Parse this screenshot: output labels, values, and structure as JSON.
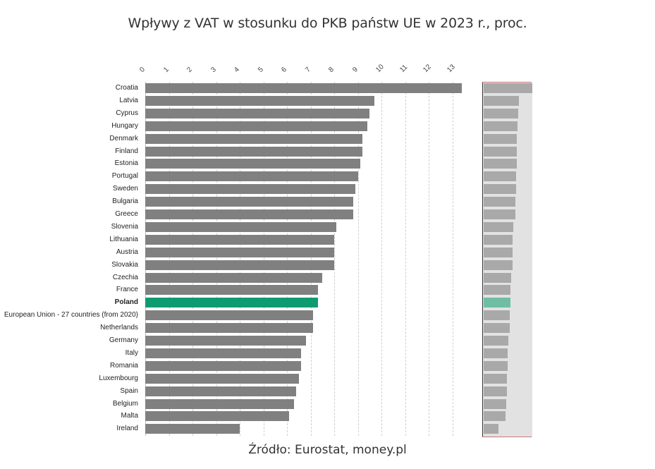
{
  "title": "Wpływy z VAT w stosunku do PKB państw UE w 2023 r., proc.",
  "source": "Źródło: Eurostat, money.pl",
  "colors": {
    "bar": "#808080",
    "highlight": "#0f9b72",
    "mini_bar": "#a9a9a9",
    "mini_highlight": "#6fbea4",
    "mini_bg": "#e2e2e2"
  },
  "ticks": [
    "0",
    "1",
    "2",
    "3",
    "4",
    "5",
    "6",
    "7",
    "8",
    "9",
    "10",
    "11",
    "12",
    "13"
  ],
  "chart_data": {
    "type": "bar",
    "orientation": "horizontal",
    "title": "Wpływy z VAT w stosunku do PKB państw UE w 2023 r., proc.",
    "xlabel": "",
    "ylabel": "",
    "xlim": [
      0,
      13.5
    ],
    "x_ticks": [
      0,
      1,
      2,
      3,
      4,
      5,
      6,
      7,
      8,
      9,
      10,
      11,
      12,
      13
    ],
    "grid": "vertical dashed",
    "highlight": "Poland",
    "categories": [
      "Croatia",
      "Latvia",
      "Cyprus",
      "Hungary",
      "Denmark",
      "Finland",
      "Estonia",
      "Portugal",
      "Sweden",
      "Bulgaria",
      "Greece",
      "Slovenia",
      "Lithuania",
      "Austria",
      "Slovakia",
      "Czechia",
      "France",
      "Poland",
      "European Union - 27 countries (from 2020)",
      "Netherlands",
      "Germany",
      "Italy",
      "Romania",
      "Luxembourg",
      "Spain",
      "Belgium",
      "Malta",
      "Ireland"
    ],
    "values": [
      13.4,
      9.7,
      9.5,
      9.4,
      9.2,
      9.2,
      9.1,
      9.0,
      8.9,
      8.8,
      8.8,
      8.1,
      8.0,
      8.0,
      8.0,
      7.5,
      7.3,
      7.3,
      7.1,
      7.1,
      6.8,
      6.6,
      6.6,
      6.5,
      6.4,
      6.3,
      6.1,
      4.0
    ],
    "source": "Źródło: Eurostat, money.pl"
  }
}
